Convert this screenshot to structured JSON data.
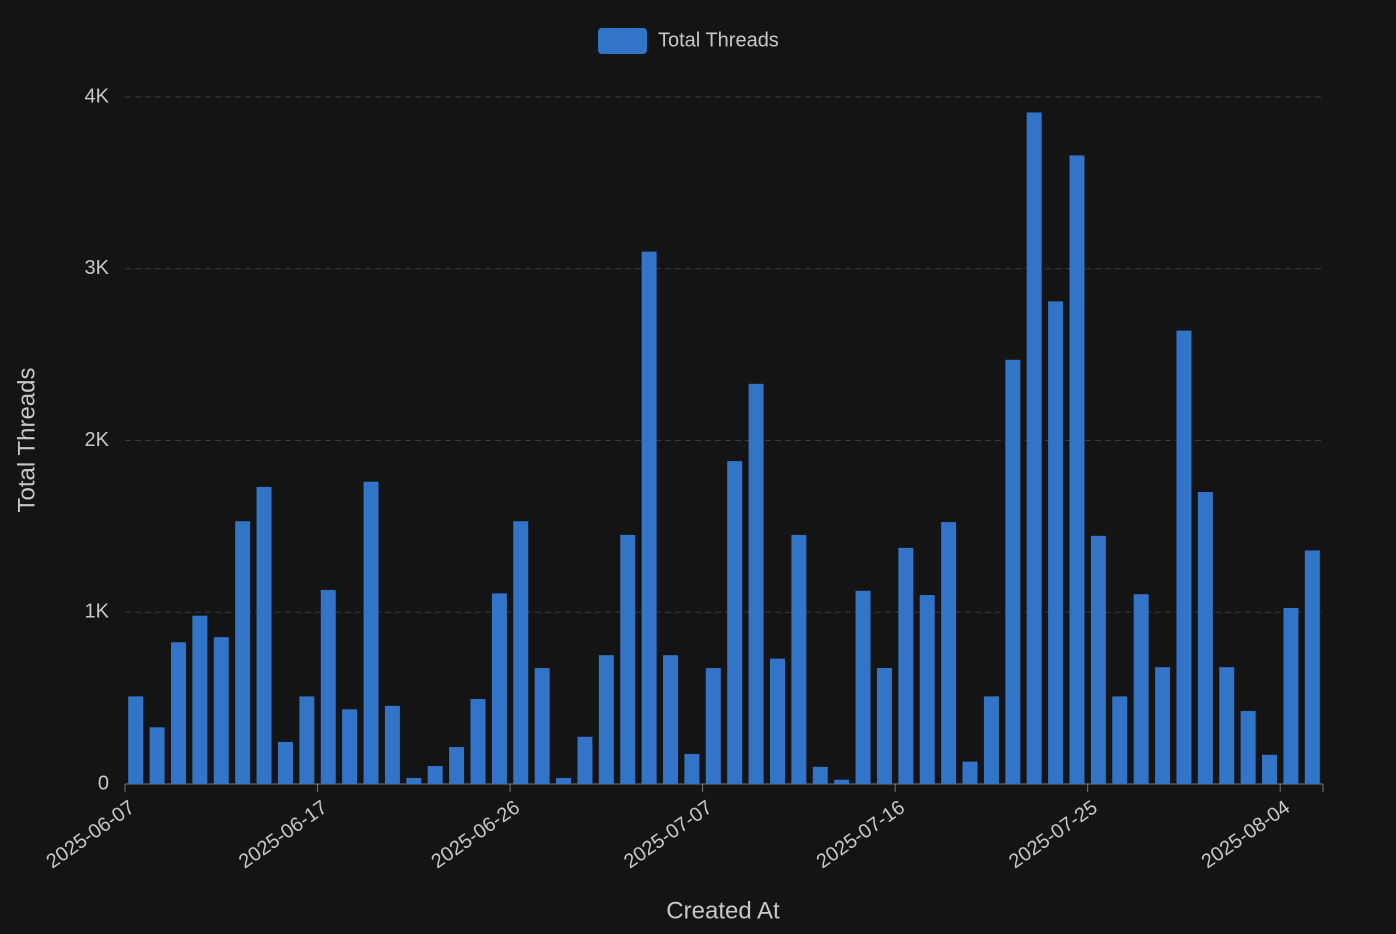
{
  "chart_data": {
    "type": "bar",
    "legend": "top",
    "x_label": "Created At",
    "y_label": "Total Threads",
    "categories": [
      "2025-06-07",
      null,
      null,
      null,
      null,
      null,
      null,
      null,
      null,
      "2025-06-17",
      null,
      null,
      null,
      null,
      null,
      null,
      null,
      null,
      "2025-06-26",
      null,
      null,
      null,
      null,
      null,
      null,
      null,
      null,
      "2025-07-07",
      null,
      null,
      null,
      null,
      null,
      null,
      null,
      null,
      "2025-07-16",
      null,
      null,
      null,
      null,
      null,
      null,
      null,
      null,
      "2025-07-25",
      null,
      null,
      null,
      null,
      null,
      null,
      null,
      null,
      "2025-08-04",
      null
    ],
    "series": [
      {
        "name": "Total Threads",
        "color": "#3275c8",
        "values": [
          510,
          330,
          825,
          980,
          855,
          1530,
          1730,
          245,
          510,
          1130,
          435,
          1760,
          455,
          35,
          105,
          215,
          495,
          1110,
          1530,
          675,
          35,
          275,
          750,
          1450,
          3100,
          750,
          175,
          675,
          1880,
          2330,
          730,
          1450,
          100,
          25,
          1125,
          675,
          1375,
          1100,
          1525,
          130,
          510,
          2470,
          3910,
          2810,
          3660,
          1445,
          510,
          1105,
          680,
          2640,
          1700,
          680,
          425,
          170,
          1025,
          1360
        ]
      }
    ],
    "ylim": [
      0,
      4000
    ],
    "yticks": [
      0,
      {
        "value": 1000,
        "label": "1K"
      },
      {
        "value": 2000,
        "label": "2K"
      },
      {
        "value": 3000,
        "label": "3K"
      },
      {
        "value": 4000,
        "label": "4K"
      }
    ],
    "grid": true
  }
}
